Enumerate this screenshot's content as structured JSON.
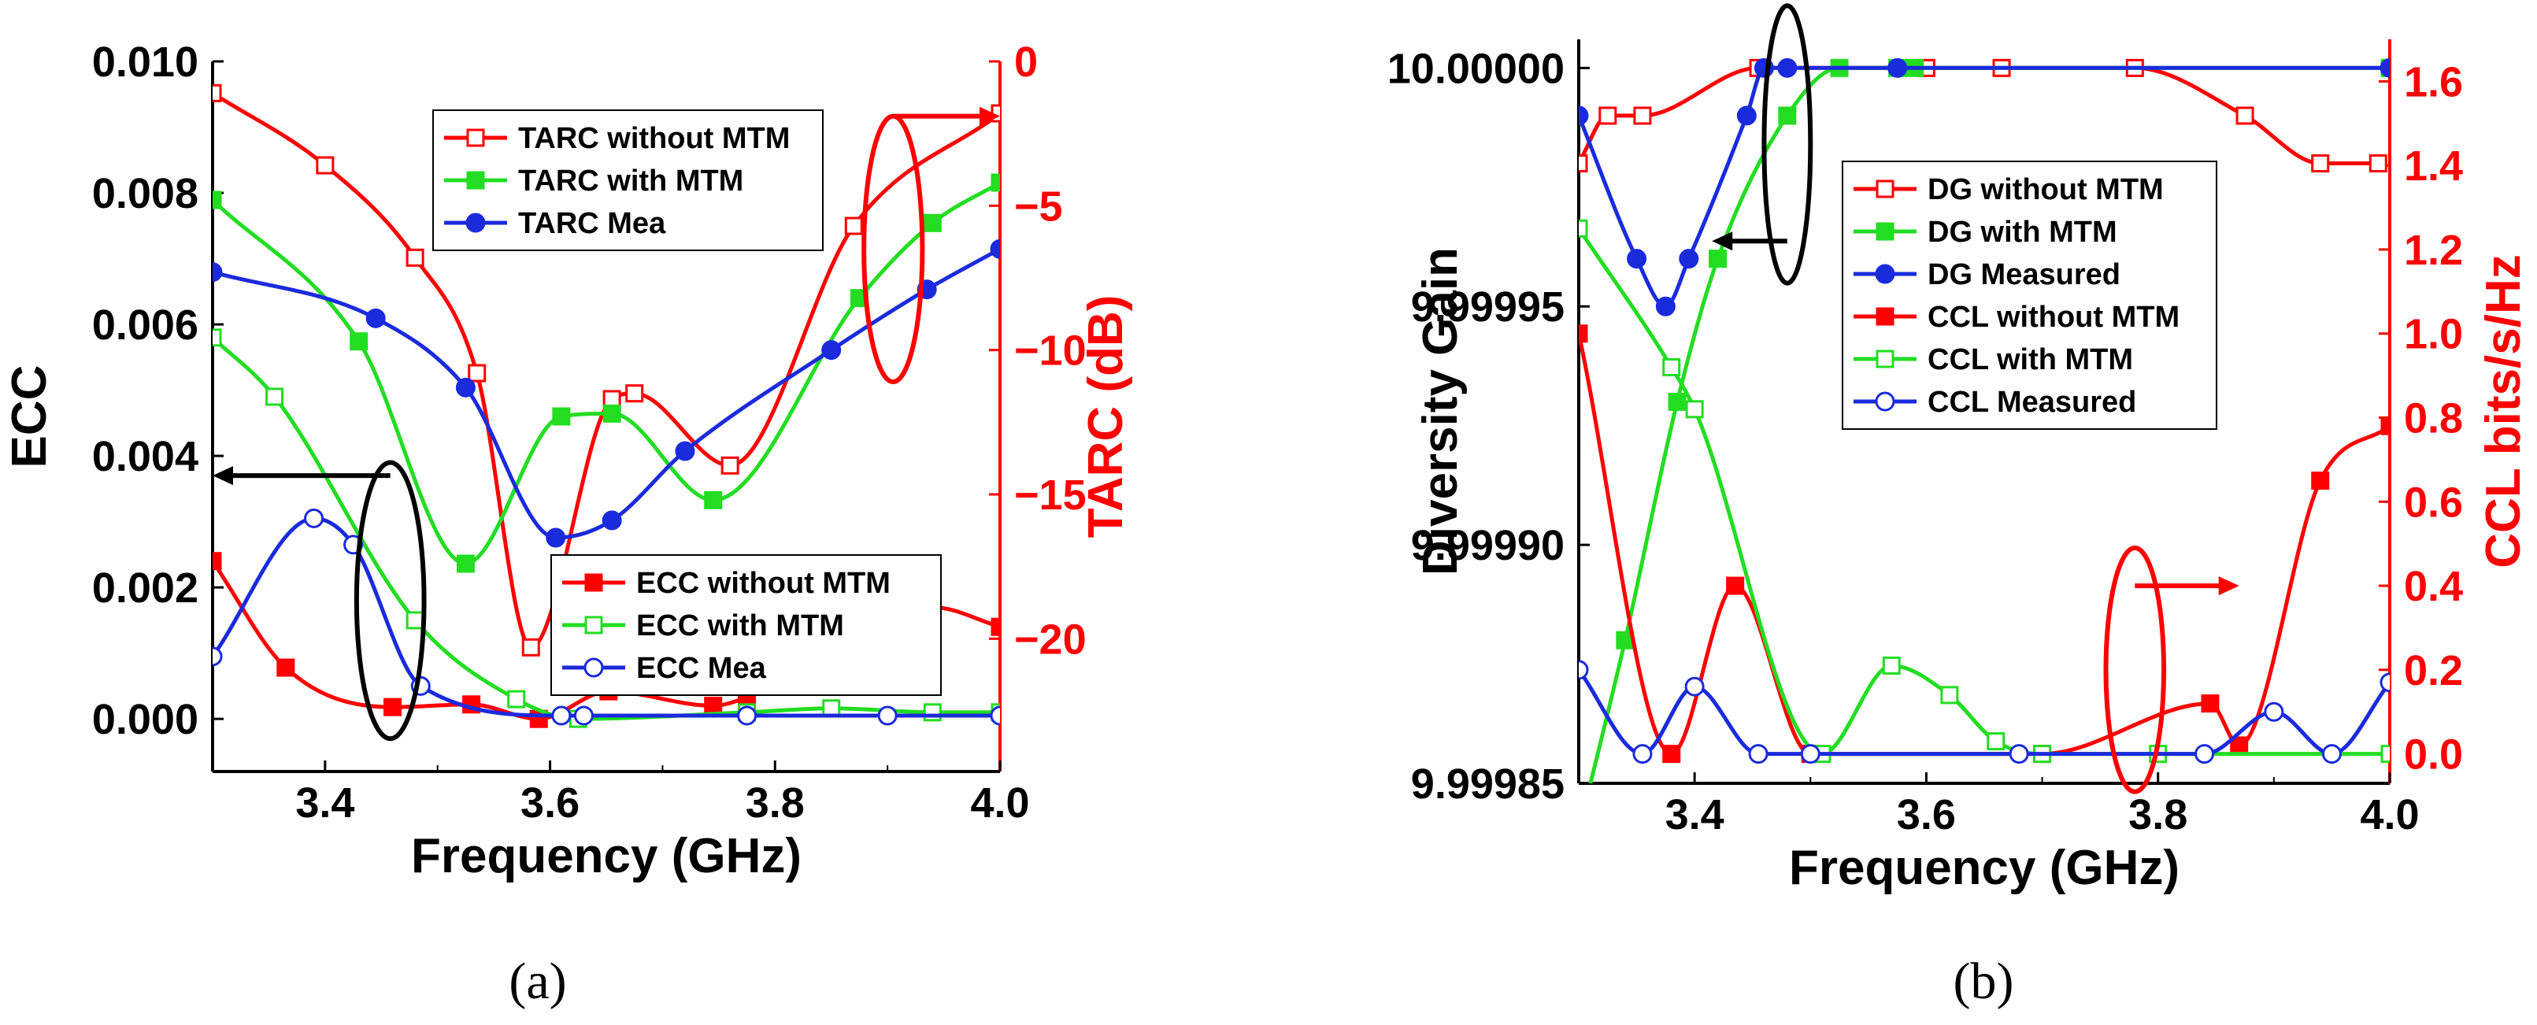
{
  "chart_data": [
    {
      "type": "line",
      "panel_label": "(a)",
      "xlabel": "Frequency (GHz)",
      "ylabel_left": "ECC",
      "ylabel_right": "TARC (dB)",
      "xlim": [
        3.3,
        4.0
      ],
      "ylim_left": [
        -0.0008,
        0.01
      ],
      "ylim_right": [
        -24.6,
        0
      ],
      "x_ticks": [
        "3.4",
        "3.6",
        "3.8",
        "4.0"
      ],
      "y_left_ticks": [
        "0.000",
        "0.002",
        "0.004",
        "0.006",
        "0.008",
        "0.010"
      ],
      "y_right_ticks": [
        "0",
        "−5",
        "−10",
        "−15",
        "−20"
      ],
      "colors": {
        "red": "#ff0000",
        "green": "#22dd22",
        "blue": "#1a2bdc",
        "black": "#000000"
      },
      "legend_top": [
        "TARC without MTM",
        "TARC with MTM",
        "TARC Mea"
      ],
      "legend_bottom": [
        "ECC without MTM",
        "ECC with MTM",
        "ECC Mea"
      ],
      "series": [
        {
          "name": "TARC without MTM",
          "axis": "right",
          "color": "red",
          "marker": "square-open",
          "x": [
            3.3,
            3.4,
            3.48,
            3.535,
            3.583,
            3.655,
            3.675,
            3.76,
            3.87,
            4.0
          ],
          "y": [
            -1.1,
            -3.6,
            -6.8,
            -10.8,
            -20.3,
            -11.7,
            -11.5,
            -14.0,
            -5.7,
            -1.8
          ]
        },
        {
          "name": "TARC with MTM",
          "axis": "right",
          "color": "green",
          "marker": "square-filled",
          "x": [
            3.3,
            3.43,
            3.525,
            3.61,
            3.655,
            3.745,
            3.875,
            3.94,
            4.0
          ],
          "y": [
            -4.8,
            -9.7,
            -17.4,
            -12.3,
            -12.2,
            -15.2,
            -8.2,
            -5.6,
            -4.2
          ]
        },
        {
          "name": "TARC Mea",
          "axis": "right",
          "color": "blue",
          "marker": "circle-filled",
          "x": [
            3.3,
            3.445,
            3.525,
            3.605,
            3.655,
            3.72,
            3.85,
            3.935,
            4.0
          ],
          "y": [
            -7.3,
            -8.9,
            -11.3,
            -16.5,
            -15.9,
            -13.5,
            -10.0,
            -7.9,
            -6.5
          ]
        },
        {
          "name": "ECC without MTM",
          "axis": "left",
          "color": "red",
          "marker": "square-filled",
          "x": [
            3.3,
            3.365,
            3.46,
            3.53,
            3.59,
            3.652,
            3.745,
            3.775,
            3.94,
            4.0
          ],
          "y": [
            0.0024,
            0.00078,
            0.00018,
            0.00022,
            0.0,
            0.00042,
            0.0002,
            0.00033,
            0.0017,
            0.0014
          ]
        },
        {
          "name": "ECC with MTM",
          "axis": "left",
          "color": "green",
          "marker": "square-open",
          "x": [
            3.3,
            3.355,
            3.48,
            3.57,
            3.625,
            3.775,
            3.85,
            3.94,
            4.0
          ],
          "y": [
            0.0058,
            0.0049,
            0.0015,
            0.0003,
            0.0,
            0.0001,
            0.00016,
            0.0001,
            0.0001
          ]
        },
        {
          "name": "ECC Mea",
          "axis": "left",
          "color": "blue",
          "marker": "circle-open",
          "x": [
            3.3,
            3.39,
            3.425,
            3.485,
            3.61,
            3.63,
            3.775,
            3.9,
            4.0
          ],
          "y": [
            0.00095,
            0.00305,
            0.00265,
            0.0005,
            5e-05,
            5e-05,
            5e-05,
            5e-05,
            5e-05
          ]
        }
      ],
      "annotations": [
        {
          "type": "ellipse",
          "axis": "left",
          "cx": 3.458,
          "cy": 0.0018,
          "rx": 0.03,
          "ry": 0.0021,
          "color": "black"
        },
        {
          "type": "arrow",
          "axis": "left",
          "from": [
            3.458,
            0.0037
          ],
          "to": [
            3.3,
            0.0037
          ],
          "color": "black"
        },
        {
          "type": "ellipse",
          "axis": "right",
          "cx": 3.905,
          "cy": -6.5,
          "rx": 0.026,
          "ry": 4.6,
          "color": "red"
        },
        {
          "type": "arrow",
          "axis": "right",
          "from": [
            3.905,
            -1.9
          ],
          "to": [
            4.0,
            -1.9
          ],
          "color": "red"
        }
      ]
    },
    {
      "type": "line",
      "panel_label": "(b)",
      "xlabel": "Frequency (GHz)",
      "ylabel_left": "Diversity Gain",
      "ylabel_right": "CCL bits/s/Hz",
      "xlim": [
        3.3,
        4.0
      ],
      "ylim_left": [
        9.99985,
        10.000006
      ],
      "ylim_right": [
        -0.07,
        1.7
      ],
      "x_ticks": [
        "3.4",
        "3.6",
        "3.8",
        "4.0"
      ],
      "y_left_ticks": [
        "9.99985",
        "9.99990",
        "9.99995",
        "10.00000"
      ],
      "y_right_ticks": [
        "0.0",
        "0.2",
        "0.4",
        "0.6",
        "0.8",
        "1.0",
        "1.2",
        "1.4",
        "1.6"
      ],
      "colors": {
        "red": "#ff0000",
        "green": "#22dd22",
        "blue": "#1a2bdc",
        "black": "#000000"
      },
      "legend": [
        "DG without MTM",
        "DG with MTM",
        "DG Measured",
        "CCL without MTM",
        "CCL with MTM",
        "CCL Measured"
      ],
      "series": [
        {
          "name": "DG without MTM",
          "axis": "left",
          "color": "red",
          "marker": "square-open",
          "x": [
            3.3,
            3.325,
            3.355,
            3.455,
            3.6,
            3.665,
            3.78,
            3.875,
            3.94,
            3.99
          ],
          "y": [
            9.99998,
            9.99999,
            9.99999,
            10.0,
            10.0,
            10.0,
            10.0,
            9.99999,
            9.99998,
            9.99998
          ]
        },
        {
          "name": "DG with MTM",
          "axis": "left",
          "color": "green",
          "marker": "square-filled",
          "x": [
            3.3,
            3.34,
            3.385,
            3.42,
            3.48,
            3.525,
            3.575,
            3.59,
            4.0
          ],
          "y": [
            9.99984,
            9.99988,
            9.99993,
            9.99996,
            9.99999,
            10.0,
            10.0,
            10.0,
            10.0
          ]
        },
        {
          "name": "DG Measured",
          "axis": "left",
          "color": "blue",
          "marker": "circle-filled",
          "x": [
            3.3,
            3.35,
            3.375,
            3.395,
            3.445,
            3.46,
            3.48,
            3.575,
            4.0
          ],
          "y": [
            9.99999,
            9.99996,
            9.99995,
            9.99996,
            9.99999,
            10.0,
            10.0,
            10.0,
            10.0
          ]
        },
        {
          "name": "CCL without MTM",
          "axis": "right",
          "color": "red",
          "marker": "square-filled",
          "x": [
            3.3,
            3.38,
            3.435,
            3.5,
            3.7,
            3.845,
            3.87,
            3.94,
            4.0
          ],
          "y": [
            1.0,
            0.0,
            0.4,
            0.0,
            0.0,
            0.12,
            0.02,
            0.65,
            0.78
          ]
        },
        {
          "name": "CCL with MTM",
          "axis": "right",
          "color": "green",
          "marker": "square-open",
          "x": [
            3.3,
            3.38,
            3.4,
            3.51,
            3.57,
            3.62,
            3.66,
            3.7,
            3.8,
            4.0
          ],
          "y": [
            1.25,
            0.92,
            0.82,
            0.0,
            0.21,
            0.14,
            0.03,
            0.0,
            0.0,
            0.0
          ]
        },
        {
          "name": "CCL Measured",
          "axis": "right",
          "color": "blue",
          "marker": "circle-open",
          "x": [
            3.3,
            3.355,
            3.4,
            3.455,
            3.5,
            3.68,
            3.84,
            3.9,
            3.95,
            4.0
          ],
          "y": [
            0.2,
            0.0,
            0.16,
            0.0,
            0.0,
            0.0,
            0.0,
            0.1,
            0.0,
            0.17
          ]
        }
      ],
      "annotations": [
        {
          "type": "ellipse",
          "axis": "right",
          "cx": 3.48,
          "cy": 1.45,
          "rx": 0.02,
          "ry": 0.33,
          "color": "black"
        },
        {
          "type": "arrow",
          "axis": "right",
          "from": [
            3.48,
            1.22
          ],
          "to": [
            3.415,
            1.22
          ],
          "color": "black"
        },
        {
          "type": "ellipse",
          "axis": "right",
          "cx": 3.78,
          "cy": 0.2,
          "rx": 0.025,
          "ry": 0.29,
          "color": "red"
        },
        {
          "type": "arrow",
          "axis": "right",
          "from": [
            3.78,
            0.4
          ],
          "to": [
            3.87,
            0.4
          ],
          "color": "red"
        }
      ]
    }
  ]
}
